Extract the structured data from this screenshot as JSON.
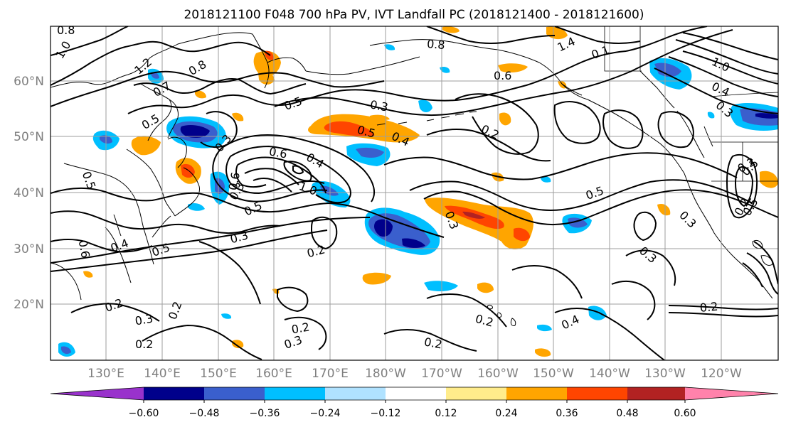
{
  "title": "2018121100 F048 700 hPa PV, IVT Landfall PC (2018121400 - 2018121600)",
  "lat_labels": [
    "60°N",
    "50°N",
    "40°N",
    "30°N",
    "20°N"
  ],
  "lon_labels": [
    "130°E",
    "140°E",
    "150°E",
    "160°E",
    "170°E",
    "180°W",
    "170°W",
    "160°W",
    "150°W",
    "140°W",
    "130°W",
    "120°W"
  ],
  "colorbar": {
    "colors": [
      "#9932cc",
      "#00008b",
      "#3a5fcd",
      "#00bfff",
      "#b0e2ff",
      "#ffffff",
      "#ffec8b",
      "#ffa500",
      "#ff4500",
      "#b22222",
      "#ff82ab"
    ],
    "tick_labels": [
      "−0.60",
      "−0.48",
      "−0.36",
      "−0.24",
      "−0.12",
      "0.12",
      "0.24",
      "0.36",
      "0.48",
      "0.60"
    ]
  },
  "contour_labels": [
    "0.8",
    "1.0",
    "1.2",
    "0.7",
    "0.8",
    "0.5",
    "0.8",
    "0.6",
    "1.4",
    "0.1",
    "1.0",
    "0.4",
    "0.3",
    "0.5",
    "0.3",
    "0.5",
    "0.4",
    "0.2",
    "0.6",
    "0.3",
    "0.5",
    "0.4",
    "0.6",
    "0.3",
    "1.0",
    "0.5",
    "0.6",
    "0.5",
    "0.5",
    "0.3",
    "0.3",
    "0.2",
    "0.3",
    "0.5",
    "0.4",
    "0.5",
    "0.3",
    "0.2",
    "0.2",
    "0.2",
    "0.2",
    "0.3",
    "0.2",
    "0.2",
    "0.3",
    "0.2",
    "0.4",
    "0.2",
    "0.2"
  ]
}
